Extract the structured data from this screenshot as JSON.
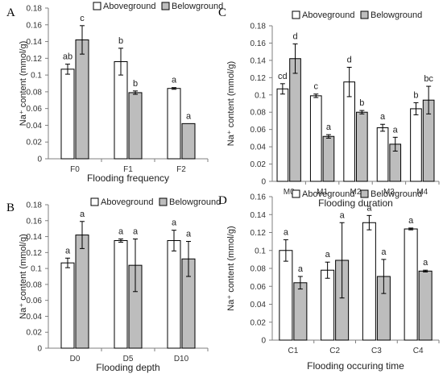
{
  "legend": {
    "aboveground": "Aboveground",
    "belowground": "Belowground"
  },
  "colors": {
    "aboveground": "#ffffff",
    "belowground": "#bdbdbd"
  },
  "chart_data": [
    {
      "panel": "A",
      "type": "bar",
      "xlabel": "Flooding frequency",
      "ylabel": "Na⁺ content (mmol/g)",
      "ylim": [
        0,
        0.18
      ],
      "yticks": [
        "0",
        "0.02",
        "0.04",
        "0.06",
        "0.08",
        "0.1",
        "0.12",
        "0.14",
        "0.16",
        "0.18"
      ],
      "categories": [
        "F0",
        "F1",
        "F2"
      ],
      "series": [
        {
          "name": "Aboveground",
          "values": [
            0.107,
            0.116,
            0.084
          ],
          "errors": [
            0.006,
            0.016,
            0.001
          ],
          "letters": [
            "ab",
            "b",
            "a"
          ]
        },
        {
          "name": "Belowground",
          "values": [
            0.142,
            0.079,
            0.042
          ],
          "errors": [
            0.017,
            0.002,
            0.0
          ],
          "letters": [
            "c",
            "b",
            "a"
          ]
        }
      ]
    },
    {
      "panel": "C",
      "type": "bar",
      "xlabel": "Flooding duration",
      "ylabel": "Na⁺ content (mmol/g)",
      "ylim": [
        0,
        0.18
      ],
      "yticks": [
        "0",
        "0.02",
        "0.04",
        "0.06",
        "0.08",
        "0.1",
        "0.12",
        "0.14",
        "0.16",
        "0.18"
      ],
      "categories": [
        "M0",
        "M1",
        "M2",
        "M3",
        "M4"
      ],
      "series": [
        {
          "name": "Aboveground",
          "values": [
            0.107,
            0.099,
            0.115,
            0.062,
            0.084
          ],
          "errors": [
            0.006,
            0.002,
            0.017,
            0.004,
            0.007
          ],
          "letters": [
            "cd",
            "c",
            "d",
            "a",
            "b"
          ]
        },
        {
          "name": "Belowground",
          "values": [
            0.142,
            0.052,
            0.08,
            0.043,
            0.094
          ],
          "errors": [
            0.017,
            0.002,
            0.002,
            0.008,
            0.016
          ],
          "letters": [
            "d",
            "a",
            "b",
            "a",
            "bc"
          ]
        }
      ]
    },
    {
      "panel": "B",
      "type": "bar",
      "xlabel": "Flooding depth",
      "ylabel": "Na⁺ content (mmol/g)",
      "ylim": [
        0,
        0.18
      ],
      "yticks": [
        "0",
        "0.02",
        "0.04",
        "0.06",
        "0.08",
        "0.1",
        "0.12",
        "0.14",
        "0.16",
        "0.18"
      ],
      "categories": [
        "D0",
        "D5",
        "D10"
      ],
      "series": [
        {
          "name": "Aboveground",
          "values": [
            0.107,
            0.135,
            0.135
          ],
          "errors": [
            0.006,
            0.002,
            0.013
          ],
          "letters": [
            "a",
            "a",
            "a"
          ]
        },
        {
          "name": "Belowground",
          "values": [
            0.142,
            0.104,
            0.112
          ],
          "errors": [
            0.017,
            0.033,
            0.022
          ],
          "letters": [
            "a",
            "a",
            "a"
          ]
        }
      ]
    },
    {
      "panel": "D",
      "type": "bar",
      "xlabel": "Flooding occuring time",
      "ylabel": "Na⁺ content (mmol/g)",
      "ylim": [
        0,
        0.16
      ],
      "yticks": [
        "0",
        "0.02",
        "0.04",
        "0.06",
        "0.08",
        "0.1",
        "0.12",
        "0.14",
        "0.16"
      ],
      "categories": [
        "C1",
        "C2",
        "C3",
        "C4"
      ],
      "series": [
        {
          "name": "Aboveground",
          "values": [
            0.1,
            0.078,
            0.131,
            0.124
          ],
          "errors": [
            0.012,
            0.009,
            0.008,
            0.001
          ],
          "letters": [
            "a",
            "a",
            "a",
            "a"
          ]
        },
        {
          "name": "Belowground",
          "values": [
            0.064,
            0.089,
            0.071,
            0.077
          ],
          "errors": [
            0.007,
            0.042,
            0.019,
            0.001
          ],
          "letters": [
            "a",
            "a",
            "a",
            "a"
          ]
        }
      ]
    }
  ]
}
